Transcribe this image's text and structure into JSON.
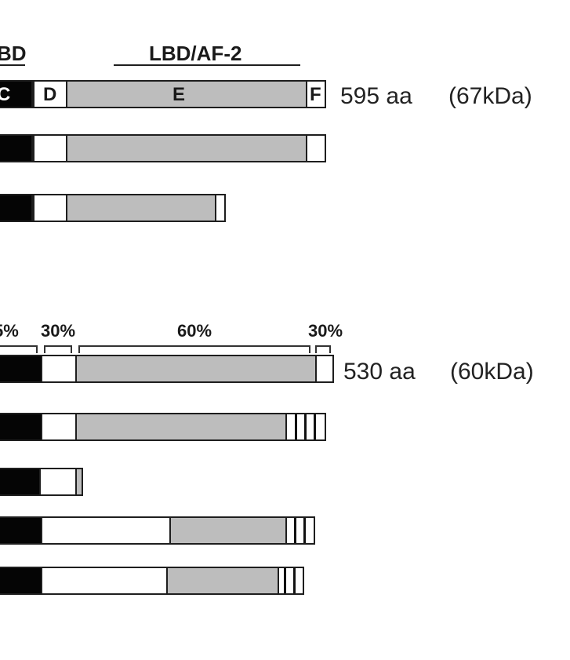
{
  "figure": {
    "top": {
      "header_left": "BD",
      "header_right": "LBD/AF-2",
      "domain_c": "C",
      "domain_d": "D",
      "domain_e": "E",
      "domain_f": "F",
      "size_aa": "595 aa",
      "size_kda": "(67kDa)"
    },
    "bottom": {
      "pct_left": "5%",
      "pct_d": "30%",
      "pct_e": "60%",
      "pct_f": "30%",
      "size_aa": "530 aa",
      "size_kda": "(60kDa)"
    }
  },
  "colors": {
    "dbd": "#050505",
    "hinge": "#ffffff",
    "lbd": "#bdbdbd",
    "outline": "#1e1e1e"
  }
}
